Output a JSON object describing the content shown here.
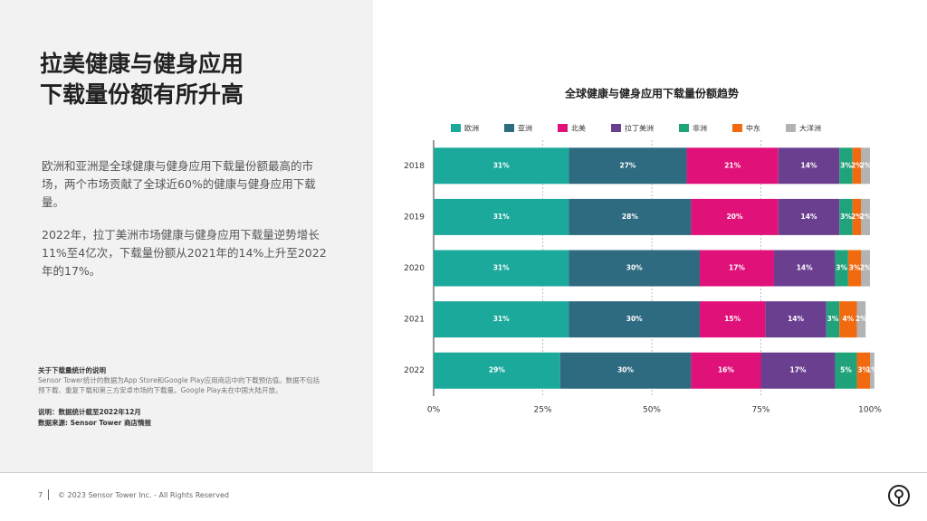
{
  "slide": {
    "title_lines": [
      "拉美健康与健身应用",
      "下载量份额有所升高"
    ],
    "paragraphs": [
      "欧洲和亚洲是全球健康与健身应用下载量份额最高的市场，两个市场贡献了全球近60%的健康与健身应用下载量。",
      "2022年，拉丁美洲市场健康与健身应用下载量逆势增长11%至4亿次，下载量份额从2021年的14%上升至2022年的17%。"
    ],
    "note_title": "关于下载量统计的说明",
    "note_text": "Sensor Tower统计的数据为App Store和Google Play应用商店中的下载预估值。数据不包括预下载、重复下载和第三方安卓市场的下载量。Google Play未在中国大陆开放。",
    "note_date": "说明：数据统计截至2022年12月",
    "note_source": "数据来源: Sensor Tower 商店情报",
    "page_number": "7",
    "copyright": "© 2023 Sensor Tower Inc. - All Rights Reserved"
  },
  "chart_data": {
    "type": "stacked_barh",
    "title": "全球健康与健身应用下载量份额趋势",
    "categories": [
      "2018",
      "2019",
      "2020",
      "2021",
      "2022"
    ],
    "series": [
      {
        "name": "欧洲",
        "color": "#1aa99b",
        "values": [
          31,
          31,
          31,
          31,
          29
        ],
        "value_labels": [
          "31%",
          "31%",
          "31%",
          "31%",
          "29%"
        ]
      },
      {
        "name": "亚洲",
        "color": "#2e6a80",
        "values": [
          27,
          28,
          30,
          30,
          30
        ],
        "value_labels": [
          "27%",
          "28%",
          "30%",
          "30%",
          "30%"
        ]
      },
      {
        "name": "北美",
        "color": "#e0127a",
        "values": [
          21,
          20,
          17,
          15,
          16
        ],
        "value_labels": [
          "21%",
          "20%",
          "17%",
          "15%",
          "16%"
        ]
      },
      {
        "name": "拉丁美洲",
        "color": "#6b3f8f",
        "values": [
          14,
          14,
          14,
          14,
          17
        ],
        "value_labels": [
          "14%",
          "14%",
          "14%",
          "14%",
          "17%"
        ]
      },
      {
        "name": "非洲",
        "color": "#20a37a",
        "values": [
          3,
          3,
          3,
          3,
          5
        ],
        "value_labels": [
          "3%",
          "3%",
          "3%",
          "3%",
          "5%"
        ]
      },
      {
        "name": "中东",
        "color": "#f26a10",
        "values": [
          2,
          2,
          3,
          4,
          3
        ],
        "value_labels": [
          "2%",
          "2%",
          "3%",
          "4%",
          "3%"
        ]
      },
      {
        "name": "大洋洲",
        "color": "#b3b3b3",
        "values": [
          2,
          2,
          2,
          2,
          1
        ],
        "value_labels": [
          "2%",
          "2%",
          "2%",
          "2%",
          "1%"
        ]
      }
    ],
    "xlim": [
      0,
      100
    ],
    "xticks": [
      {
        "value": 0,
        "label": "0%"
      },
      {
        "value": 25,
        "label": "25%"
      },
      {
        "value": 50,
        "label": "50%"
      },
      {
        "value": 75,
        "label": "75%"
      },
      {
        "value": 100,
        "label": "100%"
      }
    ],
    "grid": true
  }
}
